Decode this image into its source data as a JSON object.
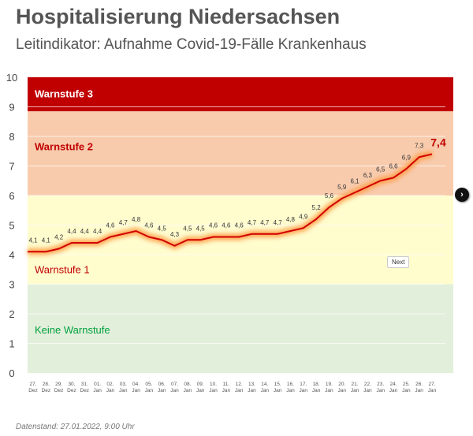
{
  "header": {
    "title": "Hospitalisierung Niedersachsen",
    "subtitle": "Leitindikator: Aufnahme Covid-19-Fälle Krankenhaus"
  },
  "footer": {
    "data_status": "Datenstand: 27.01.2022, 9:00 Uhr"
  },
  "controls": {
    "next_label": "Next",
    "arrow_icon": "chevron-right-icon"
  },
  "chart_data": {
    "type": "line",
    "title": "Hospitalisierung Niedersachsen",
    "ylim": [
      0,
      10
    ],
    "yticks": [
      "0",
      "1",
      "2",
      "3",
      "4",
      "5",
      "6",
      "7",
      "8",
      "9",
      "10"
    ],
    "bands": [
      {
        "label": "Keine Warnstufe",
        "from": 0,
        "to": 3,
        "color": "#e2efda",
        "text_color": "#00a040"
      },
      {
        "label": "Warnstufe 1",
        "from": 3,
        "to": 6,
        "color": "#fffcce",
        "text_color": "#c00000"
      },
      {
        "label": "Warnstufe 2",
        "from": 6,
        "to": 8.85,
        "color": "#f8cbad",
        "text_color": "#c00000"
      },
      {
        "label": "Warnstufe 3",
        "from": 8.85,
        "to": 10,
        "color": "#c00000",
        "text_color": "#ffffff"
      }
    ],
    "x": [
      [
        "27.",
        "Dez"
      ],
      [
        "28.",
        "Dez"
      ],
      [
        "29.",
        "Dez"
      ],
      [
        "30.",
        "Dez"
      ],
      [
        "31.",
        "Dez"
      ],
      [
        "01.",
        "Jan"
      ],
      [
        "02.",
        "Jan"
      ],
      [
        "03.",
        "Jan"
      ],
      [
        "04.",
        "Jan"
      ],
      [
        "05.",
        "Jan"
      ],
      [
        "06.",
        "Jan"
      ],
      [
        "07.",
        "Jan"
      ],
      [
        "08.",
        "Jan"
      ],
      [
        "09.",
        "Jan"
      ],
      [
        "10.",
        "Jan"
      ],
      [
        "11.",
        "Jan"
      ],
      [
        "12.",
        "Jan"
      ],
      [
        "13.",
        "Jan"
      ],
      [
        "14.",
        "Jan"
      ],
      [
        "15.",
        "Jan"
      ],
      [
        "16.",
        "Jan"
      ],
      [
        "17.",
        "Jan"
      ],
      [
        "18.",
        "Jan"
      ],
      [
        "19.",
        "Jan"
      ],
      [
        "20.",
        "Jan"
      ],
      [
        "21.",
        "Jan"
      ],
      [
        "22.",
        "Jan"
      ],
      [
        "23.",
        "Jan"
      ],
      [
        "24.",
        "Jan"
      ],
      [
        "25.",
        "Jan"
      ],
      [
        "26.",
        "Jan"
      ],
      [
        "27.",
        "Jan"
      ]
    ],
    "values": [
      4.1,
      4.1,
      4.2,
      4.4,
      4.4,
      4.4,
      4.6,
      4.7,
      4.8,
      4.6,
      4.5,
      4.3,
      4.5,
      4.5,
      4.6,
      4.6,
      4.6,
      4.7,
      4.7,
      4.7,
      4.8,
      4.9,
      5.2,
      5.6,
      5.9,
      6.1,
      6.3,
      6.5,
      6.6,
      6.9,
      7.3,
      7.4
    ],
    "line_color": "#d00000"
  }
}
